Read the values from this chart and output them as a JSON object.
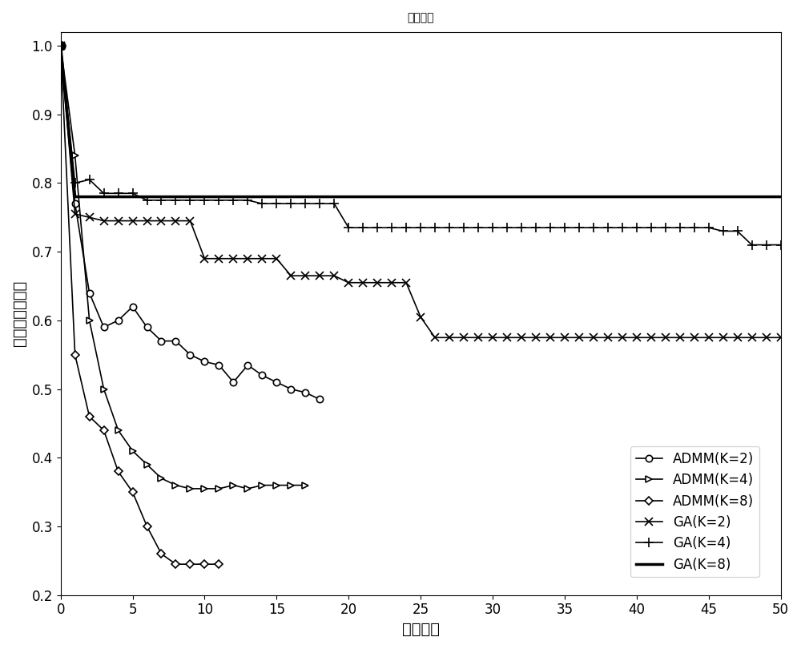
{
  "title": "收敛曲线",
  "xlabel": "迭代次数",
  "ylabel": "归一化目标函数",
  "xlim": [
    0,
    50
  ],
  "ylim": [
    0.2,
    1.02
  ],
  "xticks": [
    0,
    5,
    10,
    15,
    20,
    25,
    30,
    35,
    40,
    45,
    50
  ],
  "yticks": [
    0.2,
    0.3,
    0.4,
    0.5,
    0.6,
    0.7,
    0.8,
    0.9,
    1.0
  ],
  "series": {
    "ADMM_K2": {
      "label": "ADMM(K=2)",
      "marker": "o",
      "color": "#000000",
      "linewidth": 1.2,
      "markersize": 6,
      "x": [
        0,
        1,
        2,
        3,
        4,
        5,
        6,
        7,
        8,
        9,
        10,
        11,
        12,
        13,
        14,
        15,
        16,
        17,
        18
      ],
      "y": [
        1.0,
        0.77,
        0.64,
        0.59,
        0.6,
        0.62,
        0.59,
        0.57,
        0.57,
        0.55,
        0.54,
        0.535,
        0.51,
        0.535,
        0.52,
        0.51,
        0.5,
        0.495,
        0.485
      ]
    },
    "ADMM_K4": {
      "label": "ADMM(K=4)",
      "marker": ">",
      "color": "#000000",
      "linewidth": 1.2,
      "markersize": 6,
      "x": [
        0,
        1,
        2,
        3,
        4,
        5,
        6,
        7,
        8,
        9,
        10,
        11,
        12,
        13,
        14,
        15,
        16,
        17
      ],
      "y": [
        1.0,
        0.84,
        0.6,
        0.5,
        0.44,
        0.41,
        0.39,
        0.37,
        0.36,
        0.355,
        0.355,
        0.355,
        0.36,
        0.355,
        0.36,
        0.36,
        0.36,
        0.36
      ]
    },
    "ADMM_K8": {
      "label": "ADMM(K=8)",
      "marker": "D",
      "color": "#000000",
      "linewidth": 1.2,
      "markersize": 6,
      "x": [
        0,
        1,
        2,
        3,
        4,
        5,
        6,
        7,
        8,
        9,
        10,
        11
      ],
      "y": [
        1.0,
        0.55,
        0.46,
        0.44,
        0.38,
        0.35,
        0.3,
        0.26,
        0.245,
        0.245,
        0.245,
        0.245
      ]
    },
    "GA_K2": {
      "label": "GA(K=2)",
      "marker": "x",
      "color": "#000000",
      "linewidth": 1.2,
      "markersize": 7,
      "x": [
        0,
        1,
        2,
        3,
        4,
        5,
        6,
        7,
        8,
        9,
        10,
        11,
        12,
        13,
        14,
        15,
        16,
        17,
        18,
        19,
        20,
        21,
        22,
        23,
        24,
        25,
        26,
        27,
        28,
        29,
        30,
        31,
        32,
        33,
        34,
        35,
        36,
        37,
        38,
        39,
        40,
        41,
        42,
        43,
        44,
        45,
        46,
        47,
        48,
        49,
        50
      ],
      "y": [
        1.0,
        0.755,
        0.75,
        0.745,
        0.745,
        0.745,
        0.745,
        0.745,
        0.745,
        0.745,
        0.69,
        0.69,
        0.69,
        0.69,
        0.69,
        0.69,
        0.665,
        0.665,
        0.665,
        0.665,
        0.655,
        0.655,
        0.655,
        0.655,
        0.655,
        0.605,
        0.575,
        0.575,
        0.575,
        0.575,
        0.575,
        0.575,
        0.575,
        0.575,
        0.575,
        0.575,
        0.575,
        0.575,
        0.575,
        0.575,
        0.575,
        0.575,
        0.575,
        0.575,
        0.575,
        0.575,
        0.575,
        0.575,
        0.575,
        0.575,
        0.575
      ]
    },
    "GA_K4": {
      "label": "GA(K=4)",
      "marker": "+",
      "color": "#000000",
      "linewidth": 1.2,
      "markersize": 8,
      "x": [
        0,
        1,
        2,
        3,
        4,
        5,
        6,
        7,
        8,
        9,
        10,
        11,
        12,
        13,
        14,
        15,
        16,
        17,
        18,
        19,
        20,
        21,
        22,
        23,
        24,
        25,
        26,
        27,
        28,
        29,
        30,
        31,
        32,
        33,
        34,
        35,
        36,
        37,
        38,
        39,
        40,
        41,
        42,
        43,
        44,
        45,
        46,
        47,
        48,
        49,
        50
      ],
      "y": [
        1.0,
        0.8,
        0.805,
        0.785,
        0.785,
        0.785,
        0.775,
        0.775,
        0.775,
        0.775,
        0.775,
        0.775,
        0.775,
        0.775,
        0.77,
        0.77,
        0.77,
        0.77,
        0.77,
        0.77,
        0.735,
        0.735,
        0.735,
        0.735,
        0.735,
        0.735,
        0.735,
        0.735,
        0.735,
        0.735,
        0.735,
        0.735,
        0.735,
        0.735,
        0.735,
        0.735,
        0.735,
        0.735,
        0.735,
        0.735,
        0.735,
        0.735,
        0.735,
        0.735,
        0.735,
        0.735,
        0.73,
        0.73,
        0.71,
        0.71,
        0.71
      ]
    },
    "GA_K8": {
      "label": "GA(K=8)",
      "marker": "None",
      "color": "#000000",
      "linewidth": 2.5,
      "markersize": 0,
      "x": [
        0,
        1,
        2,
        3,
        4,
        5,
        6,
        7,
        8,
        9,
        10,
        50
      ],
      "y": [
        1.0,
        0.78,
        0.78,
        0.78,
        0.78,
        0.78,
        0.78,
        0.78,
        0.78,
        0.78,
        0.78,
        0.78
      ]
    }
  }
}
